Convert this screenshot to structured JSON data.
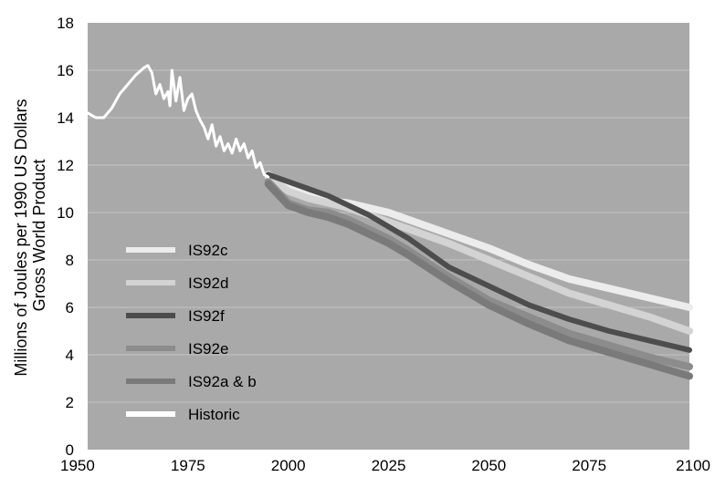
{
  "chart_data": {
    "type": "line",
    "title": "",
    "ylabel_lines": [
      "Millions of Joules per 1990 US Dollars",
      "Gross World Product"
    ],
    "xlabel": "",
    "xlim": [
      1950,
      2100
    ],
    "ylim": [
      0,
      18
    ],
    "x_ticks": [
      1950,
      1975,
      2000,
      2025,
      2050,
      2075,
      2100
    ],
    "y_ticks": [
      0,
      2,
      4,
      6,
      8,
      10,
      12,
      14,
      16,
      18
    ],
    "grid": "horizontal",
    "legend_position": "left-middle",
    "series": [
      {
        "name": "IS92c",
        "color": "#ececec",
        "width": 8,
        "points": [
          [
            1995,
            11.6
          ],
          [
            2000,
            11.1
          ],
          [
            2005,
            10.7
          ],
          [
            2010,
            10.5
          ],
          [
            2015,
            10.4
          ],
          [
            2020,
            10.2
          ],
          [
            2025,
            10.0
          ],
          [
            2030,
            9.7
          ],
          [
            2040,
            9.1
          ],
          [
            2050,
            8.5
          ],
          [
            2060,
            7.8
          ],
          [
            2070,
            7.2
          ],
          [
            2080,
            6.8
          ],
          [
            2090,
            6.4
          ],
          [
            2100,
            6.0
          ]
        ]
      },
      {
        "name": "IS92d",
        "color": "#d3d3d3",
        "width": 8,
        "points": [
          [
            1995,
            11.5
          ],
          [
            2000,
            10.9
          ],
          [
            2005,
            10.6
          ],
          [
            2010,
            10.4
          ],
          [
            2015,
            10.2
          ],
          [
            2020,
            9.9
          ],
          [
            2025,
            9.6
          ],
          [
            2030,
            9.3
          ],
          [
            2040,
            8.7
          ],
          [
            2050,
            8.0
          ],
          [
            2060,
            7.3
          ],
          [
            2070,
            6.6
          ],
          [
            2080,
            6.1
          ],
          [
            2090,
            5.6
          ],
          [
            2100,
            5.0
          ]
        ]
      },
      {
        "name": "IS92f",
        "color": "#4d4d4d",
        "width": 6,
        "points": [
          [
            1995,
            11.6
          ],
          [
            2000,
            11.3
          ],
          [
            2005,
            11.0
          ],
          [
            2010,
            10.7
          ],
          [
            2015,
            10.3
          ],
          [
            2020,
            9.9
          ],
          [
            2025,
            9.4
          ],
          [
            2030,
            8.9
          ],
          [
            2040,
            7.7
          ],
          [
            2050,
            6.9
          ],
          [
            2060,
            6.1
          ],
          [
            2070,
            5.5
          ],
          [
            2080,
            5.0
          ],
          [
            2090,
            4.6
          ],
          [
            2100,
            4.2
          ]
        ]
      },
      {
        "name": "IS92e",
        "color": "#8c8c8c",
        "width": 8,
        "points": [
          [
            1995,
            11.3
          ],
          [
            2000,
            10.4
          ],
          [
            2005,
            10.1
          ],
          [
            2010,
            10.0
          ],
          [
            2015,
            9.7
          ],
          [
            2020,
            9.3
          ],
          [
            2025,
            8.9
          ],
          [
            2030,
            8.4
          ],
          [
            2040,
            7.3
          ],
          [
            2050,
            6.3
          ],
          [
            2060,
            5.6
          ],
          [
            2070,
            4.9
          ],
          [
            2080,
            4.4
          ],
          [
            2090,
            3.9
          ],
          [
            2100,
            3.5
          ]
        ]
      },
      {
        "name": "IS92a & b",
        "color": "#7a7a7a",
        "width": 8,
        "points": [
          [
            1995,
            11.2
          ],
          [
            2000,
            10.3
          ],
          [
            2005,
            10.0
          ],
          [
            2010,
            9.8
          ],
          [
            2015,
            9.5
          ],
          [
            2020,
            9.1
          ],
          [
            2025,
            8.7
          ],
          [
            2030,
            8.2
          ],
          [
            2040,
            7.1
          ],
          [
            2050,
            6.1
          ],
          [
            2060,
            5.3
          ],
          [
            2070,
            4.6
          ],
          [
            2080,
            4.1
          ],
          [
            2090,
            3.6
          ],
          [
            2100,
            3.1
          ]
        ]
      },
      {
        "name": "Historic",
        "color": "#ffffff",
        "width": 3,
        "points": [
          [
            1950,
            14.2
          ],
          [
            1952,
            14.0
          ],
          [
            1954,
            14.0
          ],
          [
            1956,
            14.4
          ],
          [
            1958,
            15.0
          ],
          [
            1960,
            15.4
          ],
          [
            1962,
            15.8
          ],
          [
            1964,
            16.1
          ],
          [
            1965,
            16.2
          ],
          [
            1966,
            15.9
          ],
          [
            1967,
            15.0
          ],
          [
            1968,
            15.4
          ],
          [
            1969,
            14.8
          ],
          [
            1970,
            15.1
          ],
          [
            1970.5,
            14.5
          ],
          [
            1971,
            16.0
          ],
          [
            1972,
            14.7
          ],
          [
            1973,
            15.7
          ],
          [
            1974,
            14.3
          ],
          [
            1975,
            14.8
          ],
          [
            1976,
            15.0
          ],
          [
            1977,
            14.3
          ],
          [
            1978,
            13.9
          ],
          [
            1979,
            13.6
          ],
          [
            1980,
            13.1
          ],
          [
            1981,
            13.7
          ],
          [
            1982,
            12.8
          ],
          [
            1983,
            13.2
          ],
          [
            1984,
            12.6
          ],
          [
            1985,
            12.9
          ],
          [
            1986,
            12.5
          ],
          [
            1987,
            13.1
          ],
          [
            1988,
            12.6
          ],
          [
            1989,
            12.9
          ],
          [
            1990,
            12.3
          ],
          [
            1991,
            12.6
          ],
          [
            1992,
            11.9
          ],
          [
            1993,
            12.1
          ],
          [
            1994,
            11.6
          ],
          [
            1995,
            11.5
          ]
        ]
      }
    ]
  }
}
